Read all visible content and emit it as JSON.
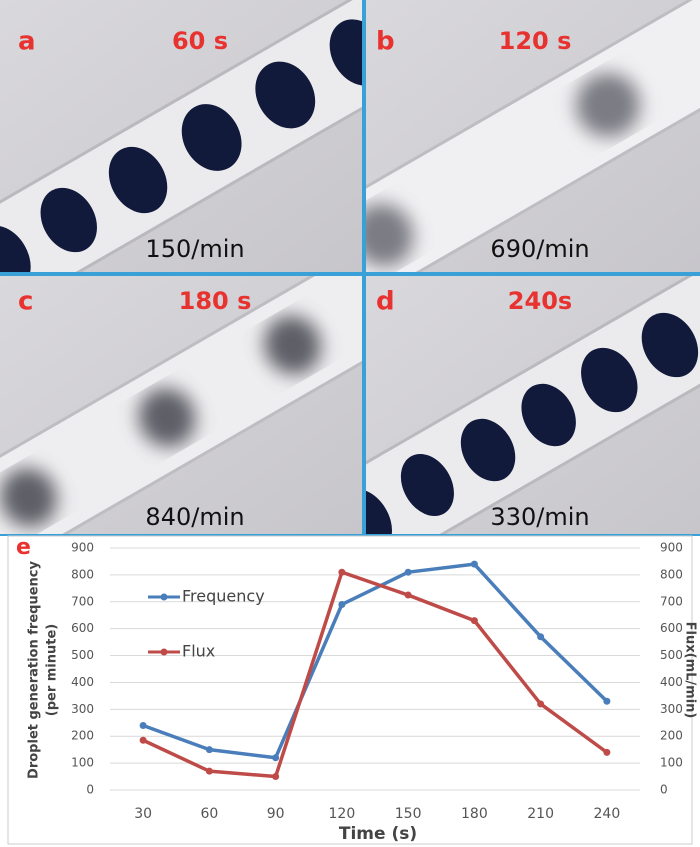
{
  "panels": [
    {
      "label": "a",
      "time": "60 s",
      "rate": "150/min"
    },
    {
      "label": "b",
      "time": "120 s",
      "rate": "690/min"
    },
    {
      "label": "c",
      "time": "180 s",
      "rate": "840/min"
    },
    {
      "label": "d",
      "time": "240s",
      "rate": "330/min"
    }
  ],
  "chart_data": {
    "type": "line",
    "panel_label": "e",
    "x_label": "Time (s)",
    "y_label": [
      "Droplet generation frequency",
      "(per minute)"
    ],
    "y2_label": "Flux(mL/min)",
    "x": [
      30,
      60,
      90,
      120,
      150,
      180,
      210,
      240
    ],
    "xlim": [
      15,
      255
    ],
    "xticks": [
      30,
      60,
      90,
      120,
      150,
      180,
      210,
      240
    ],
    "ylim": [
      0,
      900
    ],
    "yticks": [
      0,
      100,
      200,
      300,
      400,
      500,
      600,
      700,
      800,
      900
    ],
    "y2lim": [
      0,
      900
    ],
    "y2ticks": [
      0,
      100,
      200,
      300,
      400,
      500,
      600,
      700,
      800,
      900
    ],
    "grid": true,
    "series": [
      {
        "name": "Frequency",
        "color": "#4a7ebb",
        "values": [
          240,
          150,
          120,
          690,
          810,
          840,
          570,
          330
        ]
      },
      {
        "name": "Flux",
        "color": "#be4b48",
        "axis": "y2",
        "values": [
          185,
          70,
          50,
          810,
          725,
          630,
          320,
          140
        ]
      }
    ]
  }
}
